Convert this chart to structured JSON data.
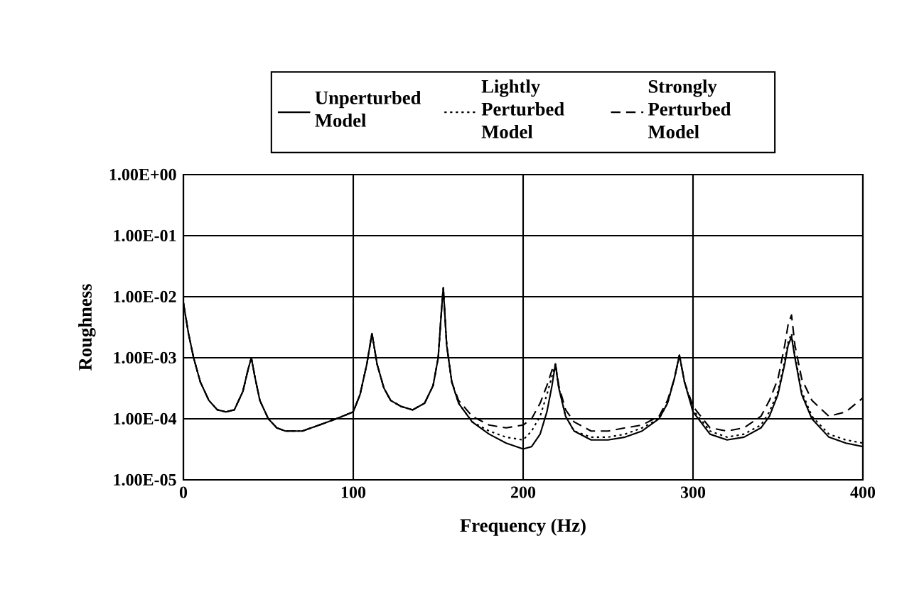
{
  "chart_data": {
    "type": "line",
    "xlabel": "Frequency (Hz)",
    "ylabel": "Roughness",
    "x": [
      0,
      3,
      6,
      10,
      15,
      20,
      25,
      30,
      35,
      38,
      40,
      42,
      45,
      50,
      55,
      60,
      65,
      70,
      80,
      90,
      100,
      104,
      108,
      111,
      114,
      118,
      122,
      128,
      135,
      142,
      147,
      150,
      152,
      153,
      155,
      158,
      162,
      170,
      180,
      190,
      200,
      205,
      210,
      214,
      217,
      219,
      221,
      225,
      230,
      240,
      250,
      260,
      270,
      280,
      285,
      289,
      292,
      295,
      300,
      310,
      320,
      330,
      340,
      345,
      350,
      354,
      356,
      358,
      360,
      364,
      370,
      380,
      390,
      400
    ],
    "series": [
      {
        "name": "Unperturbed Model",
        "color": "#000000",
        "line_style": "solid",
        "values": [
          0.0079,
          0.0025,
          0.001,
          0.0004,
          0.0002,
          0.00014,
          0.00013,
          0.00014,
          0.00028,
          0.00063,
          0.001,
          0.0005,
          0.0002,
          0.0001,
          7.1e-05,
          6.3e-05,
          6.3e-05,
          6.3e-05,
          7.9e-05,
          0.0001,
          0.00013,
          0.00025,
          0.00079,
          0.0025,
          0.00079,
          0.00032,
          0.0002,
          0.00016,
          0.00014,
          0.00018,
          0.00035,
          0.001,
          0.0063,
          0.014,
          0.0016,
          0.0004,
          0.00018,
          8.9e-05,
          5.6e-05,
          4e-05,
          3.2e-05,
          3.5e-05,
          5.6e-05,
          0.00013,
          0.00035,
          0.00079,
          0.00032,
          0.00011,
          6.3e-05,
          4.5e-05,
          4.5e-05,
          5e-05,
          6.3e-05,
          0.0001,
          0.00018,
          0.00045,
          0.0011,
          0.0004,
          0.00013,
          5.6e-05,
          4.5e-05,
          5e-05,
          7.1e-05,
          0.00011,
          0.00025,
          0.00079,
          0.0016,
          0.0022,
          0.001,
          0.00025,
          0.0001,
          5e-05,
          4e-05,
          3.5e-05
        ]
      },
      {
        "name": "Lightly Perturbed Model",
        "color": "#000000",
        "line_style": "dotted",
        "values": [
          0.0079,
          0.0025,
          0.001,
          0.0004,
          0.0002,
          0.00014,
          0.00013,
          0.00014,
          0.00028,
          0.00063,
          0.001,
          0.0005,
          0.0002,
          0.0001,
          7.1e-05,
          6.3e-05,
          6.3e-05,
          6.3e-05,
          7.9e-05,
          0.0001,
          0.00013,
          0.00025,
          0.00079,
          0.0025,
          0.00079,
          0.00032,
          0.0002,
          0.00016,
          0.00014,
          0.00018,
          0.00035,
          0.001,
          0.0063,
          0.014,
          0.0016,
          0.0004,
          0.00018,
          8.9e-05,
          6.3e-05,
          5e-05,
          4.5e-05,
          6.3e-05,
          0.00011,
          0.00025,
          0.0005,
          0.00079,
          0.00032,
          0.00011,
          6.3e-05,
          5e-05,
          5e-05,
          5.6e-05,
          7.1e-05,
          0.0001,
          0.00018,
          0.00045,
          0.0011,
          0.0004,
          0.00014,
          6.3e-05,
          5e-05,
          5.6e-05,
          7.9e-05,
          0.00013,
          0.00028,
          0.00089,
          0.0018,
          0.0025,
          0.0011,
          0.00028,
          0.00011,
          5.6e-05,
          4.5e-05,
          4e-05
        ]
      },
      {
        "name": "Strongly Perturbed Model",
        "color": "#000000",
        "line_style": "dashed",
        "values": [
          0.0079,
          0.0025,
          0.001,
          0.0004,
          0.0002,
          0.00014,
          0.00013,
          0.00014,
          0.00028,
          0.00063,
          0.001,
          0.0005,
          0.0002,
          0.0001,
          7.1e-05,
          6.3e-05,
          6.3e-05,
          6.3e-05,
          7.9e-05,
          0.0001,
          0.00013,
          0.00025,
          0.00079,
          0.0025,
          0.00079,
          0.00032,
          0.0002,
          0.00016,
          0.00014,
          0.00018,
          0.00035,
          0.001,
          0.0063,
          0.014,
          0.0016,
          0.0004,
          0.0002,
          0.00011,
          7.9e-05,
          7.1e-05,
          7.9e-05,
          0.0001,
          0.00018,
          0.00035,
          0.00063,
          0.00079,
          0.00035,
          0.00014,
          8.9e-05,
          6.3e-05,
          6.3e-05,
          7.1e-05,
          7.9e-05,
          0.00011,
          0.0002,
          0.00045,
          0.0011,
          0.0004,
          0.00016,
          7.1e-05,
          6.3e-05,
          7.1e-05,
          0.00011,
          0.0002,
          0.00045,
          0.0016,
          0.0035,
          0.005,
          0.0016,
          0.00045,
          0.0002,
          0.00011,
          0.00013,
          0.00022
        ]
      }
    ],
    "xlim": [
      0,
      400
    ],
    "xticks": [
      0,
      100,
      200,
      300,
      400
    ],
    "ylim": [
      1e-05,
      1
    ],
    "yticks": [
      {
        "value": 1e-05,
        "label": "1.00E-05"
      },
      {
        "value": 0.0001,
        "label": "1.00E-04"
      },
      {
        "value": 0.001,
        "label": "1.00E-03"
      },
      {
        "value": 0.01,
        "label": "1.00E-02"
      },
      {
        "value": 0.1,
        "label": "1.00E-01"
      },
      {
        "value": 1,
        "label": "1.00E+00"
      }
    ],
    "log": "y",
    "grid": true,
    "legend": "top",
    "marker": "none"
  }
}
